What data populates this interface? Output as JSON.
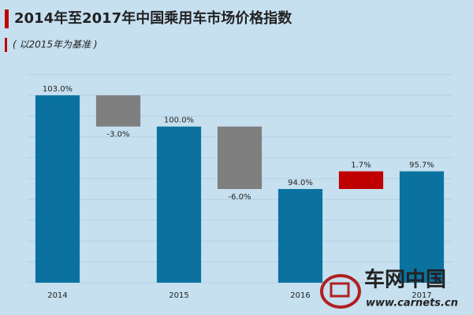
{
  "chart_data": {
    "type": "waterfall",
    "title": "2014年至2017年中国乘用车市场价格指数",
    "subtitle": "( 以2015年为基准 )",
    "categories": [
      "2014",
      null,
      "2015",
      null,
      "2016",
      null,
      "2017"
    ],
    "values": [
      103.0,
      -3.0,
      100.0,
      -6.0,
      94.0,
      1.7,
      95.7
    ],
    "value_labels": [
      "103.0%",
      "-3.0%",
      "100.0%",
      "-6.0%",
      "94.0%",
      "1.7%",
      "95.7%"
    ],
    "colors": {
      "total": "#0b72a0",
      "decrease": "#7f7f7f",
      "increase": "#c00000"
    },
    "ylim": [
      85,
      105
    ],
    "yticks": [
      85,
      87,
      89,
      91,
      93,
      95,
      97,
      99,
      101,
      103,
      105
    ],
    "grid": true,
    "watermark": {
      "brand": "车网中国",
      "url": "www.carnets.cn"
    }
  }
}
